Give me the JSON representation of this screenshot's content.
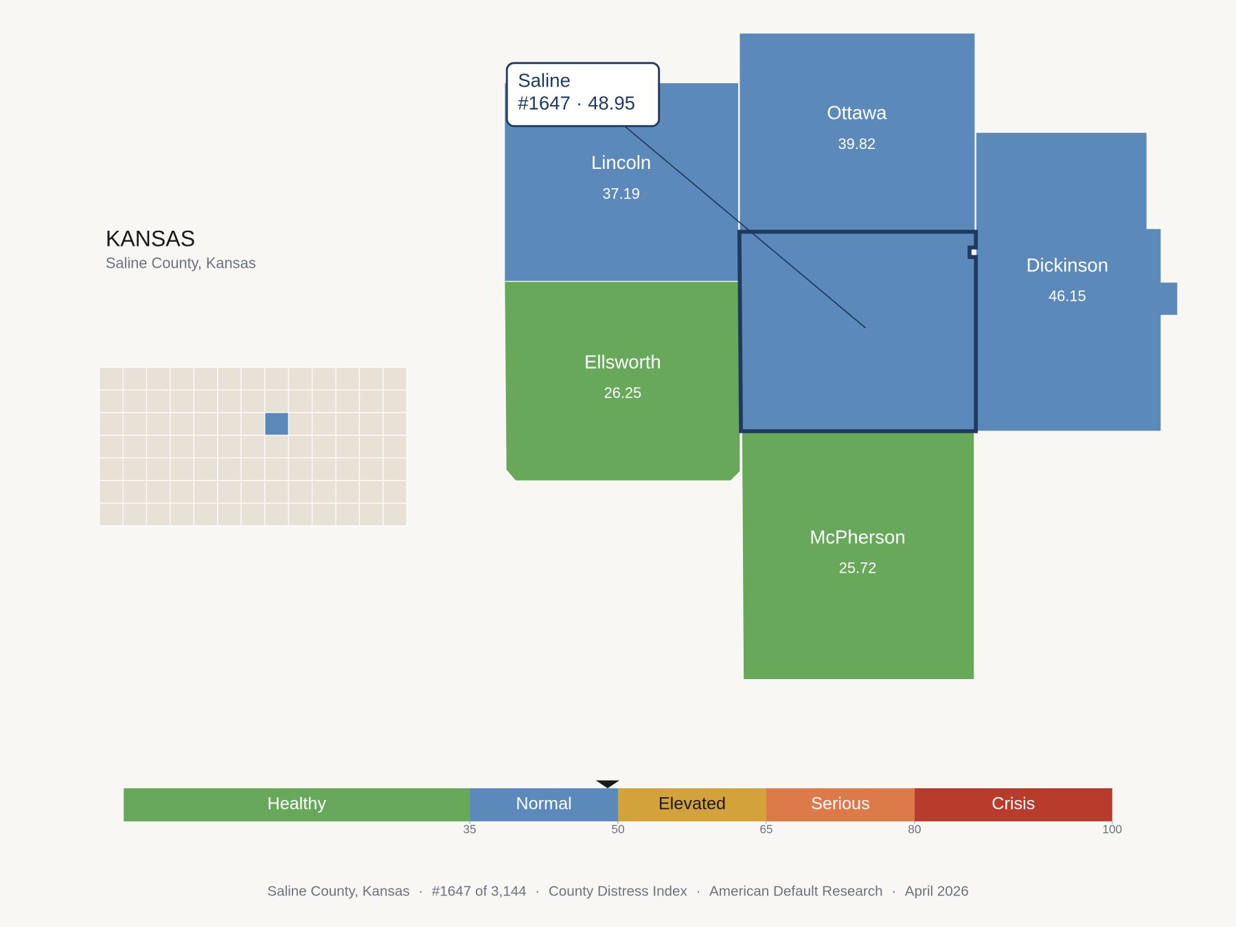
{
  "header": {
    "title": "KANSAS",
    "subtitle": "Saline County, Kansas"
  },
  "tooltip": {
    "name": "Saline",
    "rank": "#1647",
    "separator": "·",
    "value": 48.95
  },
  "counties": [
    {
      "name": "Lincoln",
      "value": 37.19
    },
    {
      "name": "Ottawa",
      "value": 39.82
    },
    {
      "name": "Dickinson",
      "value": 46.15
    },
    {
      "name": "Ellsworth",
      "value": 26.25
    },
    {
      "name": "McPherson",
      "value": 25.72
    }
  ],
  "legend": {
    "lim": [
      0,
      100
    ],
    "ticks": [
      35,
      50,
      65,
      80,
      100
    ],
    "bands": [
      {
        "label": "Healthy",
        "color": "#67a85a",
        "text_color": "#ffffff"
      },
      {
        "label": "Normal",
        "color": "#5b8aba",
        "text_color": "#ffffff"
      },
      {
        "label": "Elevated",
        "color": "#d4a23a",
        "text_color": "#1a1a1a"
      },
      {
        "label": "Serious",
        "color": "#dc7a4a",
        "text_color": "#ffffff"
      },
      {
        "label": "Crisis",
        "color": "#b83c2b",
        "text_color": "#ffffff"
      }
    ]
  },
  "footer": {
    "separator": "·",
    "items": [
      "Saline County, Kansas",
      "#1647 of 3,144",
      "County Distress Index",
      "American Default Research",
      "April 2026"
    ]
  }
}
